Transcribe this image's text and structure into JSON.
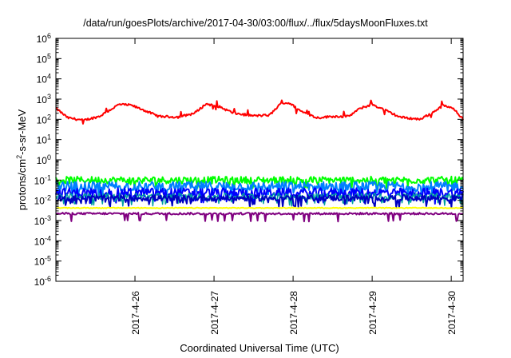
{
  "chart_data": {
    "type": "line",
    "title": "/data/run/goesPlots/archive/2017-04-30/03:00/flux/../flux/5daysMoonFluxes.txt",
    "xlabel": "Coordinated Universal Time (UTC)",
    "ylabel_parts": [
      "protons/cm",
      "2",
      "-s-sr-MeV"
    ],
    "yscale": "log",
    "ylim_exp": [
      -6,
      6
    ],
    "ytick_exponents": [
      -6,
      -5,
      -4,
      -3,
      -2,
      -1,
      0,
      1,
      2,
      3,
      4,
      5,
      6
    ],
    "ytick_base": "10",
    "xlim_days": [
      0.0,
      5.15
    ],
    "xticks": [
      {
        "label": "2017-4-26",
        "day": 1.0
      },
      {
        "label": "2017-4-27",
        "day": 2.0
      },
      {
        "label": "2017-4-28",
        "day": 3.0
      },
      {
        "label": "2017-4-29",
        "day": 4.0
      },
      {
        "label": "2017-4-30",
        "day": 5.0
      }
    ],
    "grid": false,
    "legend": "none",
    "series": [
      {
        "color": "#ff0000",
        "width": 2,
        "spikes": 0.25,
        "dips": 0.15,
        "points": [
          [
            0.0,
            350
          ],
          [
            0.15,
            120
          ],
          [
            0.35,
            90
          ],
          [
            0.55,
            140
          ],
          [
            0.8,
            550
          ],
          [
            0.95,
            500
          ],
          [
            1.1,
            300
          ],
          [
            1.3,
            140
          ],
          [
            1.55,
            130
          ],
          [
            1.75,
            200
          ],
          [
            1.9,
            580
          ],
          [
            2.05,
            450
          ],
          [
            2.25,
            200
          ],
          [
            2.5,
            150
          ],
          [
            2.7,
            160
          ],
          [
            2.85,
            620
          ],
          [
            2.95,
            650
          ],
          [
            3.1,
            250
          ],
          [
            3.3,
            120
          ],
          [
            3.5,
            140
          ],
          [
            3.7,
            140
          ],
          [
            3.85,
            350
          ],
          [
            4.0,
            550
          ],
          [
            4.15,
            300
          ],
          [
            4.35,
            130
          ],
          [
            4.6,
            100
          ],
          [
            4.75,
            200
          ],
          [
            4.9,
            500
          ],
          [
            5.05,
            300
          ],
          [
            5.15,
            100
          ]
        ]
      },
      {
        "color": "#00ff00",
        "width": 2,
        "base": 0.1,
        "noise": 0.35,
        "dips": 0.08
      },
      {
        "color": "#0080ff",
        "width": 2,
        "base": 0.05,
        "noise": 0.45,
        "dips": 0.12
      },
      {
        "color": "#0000ff",
        "width": 2,
        "base": 0.024,
        "noise": 0.45,
        "dips": 0.12
      },
      {
        "color": "#00a0a0",
        "width": 1.5,
        "base": 0.016,
        "noise": 0.3,
        "dips": 0.1
      },
      {
        "color": "#0000c0",
        "width": 2,
        "base": 0.013,
        "noise": 0.3,
        "dips": 0.1
      },
      {
        "color": "#ffff00",
        "width": 2,
        "base": 0.0042,
        "noise": 0.04,
        "dips": 0.0
      },
      {
        "color": "#800080",
        "width": 2,
        "base": 0.0022,
        "noise": 0.1,
        "dips": 0.05
      }
    ]
  }
}
